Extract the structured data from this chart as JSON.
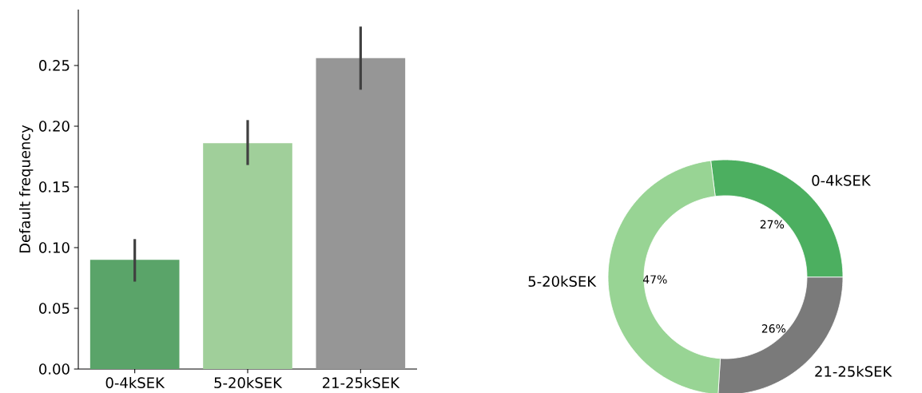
{
  "chart_data": [
    {
      "type": "bar",
      "categories": [
        "0-4kSEK",
        "5-20kSEK",
        "21-25kSEK"
      ],
      "values": [
        0.09,
        0.186,
        0.256
      ],
      "colors": [
        "#5aa469",
        "#a0cf9a",
        "#969696"
      ],
      "errors": [
        [
          0.072,
          0.107
        ],
        [
          0.168,
          0.205
        ],
        [
          0.23,
          0.282
        ]
      ],
      "ylabel": "Default frequency",
      "ylim": [
        0,
        0.296
      ],
      "yticks": [
        {
          "value": 0,
          "label": "0.00"
        },
        {
          "value": 0.05,
          "label": "0.05"
        },
        {
          "value": 0.1,
          "label": "0.10"
        },
        {
          "value": 0.15,
          "label": "0.15"
        },
        {
          "value": 0.2,
          "label": "0.20"
        },
        {
          "value": 0.25,
          "label": "0.25"
        }
      ]
    },
    {
      "type": "donut",
      "categories": [
        "0-4kSEK",
        "21-25kSEK",
        "5-20kSEK"
      ],
      "values": [
        27,
        26,
        47
      ],
      "colors": [
        "#4caf60",
        "#7a7a7a",
        "#98d494"
      ],
      "value_labels": [
        "27%",
        "26%",
        "47%"
      ]
    }
  ]
}
